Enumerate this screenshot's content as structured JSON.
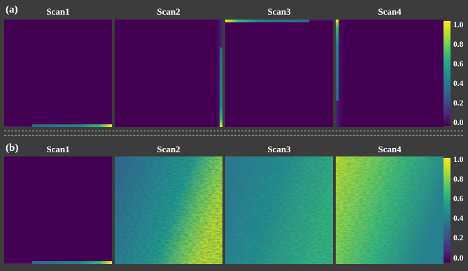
{
  "panels": [
    {
      "label": "(a)",
      "scans": [
        "Scan1",
        "Scan2",
        "Scan3",
        "Scan4"
      ],
      "colorbar_ticks": [
        "1.0",
        "0.8",
        "0.6",
        "0.4",
        "0.2",
        "0.0"
      ]
    },
    {
      "label": "(b)",
      "scans": [
        "Scan1",
        "Scan2",
        "Scan3",
        "Scan4"
      ],
      "colorbar_ticks": [
        "1.0",
        "0.8",
        "0.6",
        "0.4",
        "0.2",
        "0.0"
      ]
    }
  ],
  "colormap": "viridis",
  "colors": {
    "background": "#3c3c3c",
    "low": "#440154",
    "high": "#fde725"
  }
}
